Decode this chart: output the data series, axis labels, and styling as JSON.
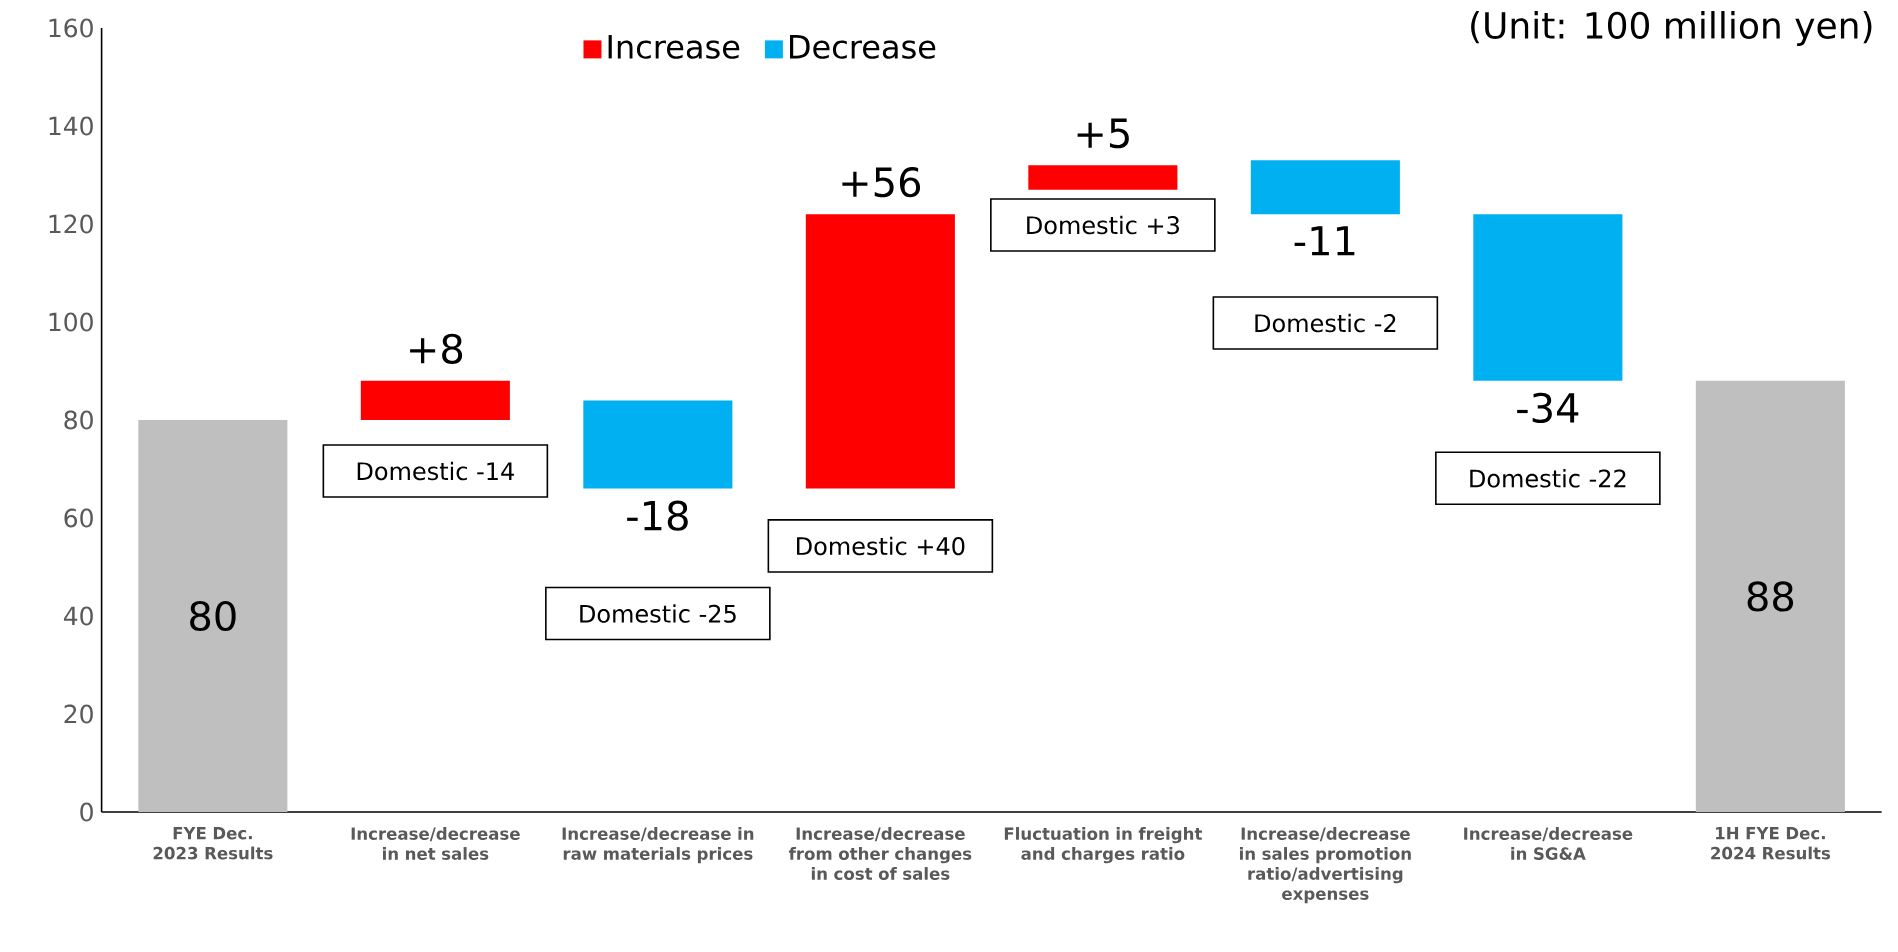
{
  "chart_data": {
    "type": "bar",
    "categories": [
      "FYE Dec. 2023 Results",
      "Increase/decrease in net sales",
      "Increase/decrease in raw materials prices",
      "Increase/decrease from other changes in cost of sales",
      "Fluctuation in freight and charges ratio",
      "Increase/decrease in sales promotion ratio/advertising expenses",
      "Increase/decrease in SG&A",
      "1H FYE Dec. 2024 Results"
    ],
    "series": [
      {
        "name": "Increase",
        "color": "#ff0000",
        "values": [
          null,
          8,
          null,
          56,
          5,
          null,
          null,
          null
        ],
        "base": [
          null,
          80,
          null,
          66,
          127,
          null,
          null,
          null
        ],
        "value_labels": [
          null,
          "+8",
          null,
          "+56",
          "+5",
          null,
          null,
          null
        ]
      },
      {
        "name": "Decrease",
        "color": "#00b0f0",
        "values": [
          null,
          null,
          -18,
          null,
          null,
          -11,
          -34,
          null
        ],
        "base": [
          null,
          null,
          84,
          null,
          null,
          133,
          122,
          null
        ],
        "value_labels": [
          null,
          null,
          "-18",
          null,
          null,
          "-11",
          "-34",
          null
        ]
      },
      {
        "color": "#bfbfbf",
        "values": [
          80,
          null,
          null,
          null,
          null,
          null,
          null,
          88
        ],
        "value_labels": [
          "80",
          null,
          null,
          null,
          null,
          null,
          null,
          "88"
        ]
      }
    ],
    "ylim": [
      0,
      160
    ],
    "yticks": [
      0,
      20,
      40,
      60,
      80,
      100,
      120,
      140,
      160
    ],
    "legend": "top",
    "annotations": [
      "(Unit: 100 million yen)",
      "Domestic -14",
      "Domestic -25",
      "Domestic +40",
      "Domestic +3",
      "Domestic -2",
      "Domestic -22"
    ]
  }
}
